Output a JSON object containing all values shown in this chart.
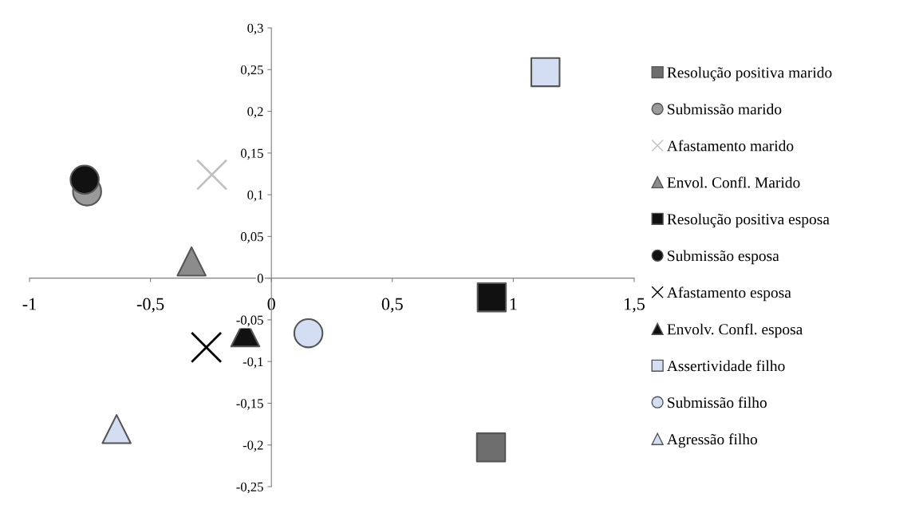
{
  "chart_data": {
    "type": "scatter",
    "series": [
      {
        "name": "Resolução positiva marido",
        "color": "#6e6e6e",
        "marker": "square",
        "x": [
          0.908
        ],
        "values": [
          -0.203
        ]
      },
      {
        "name": "Submissão marido",
        "color": "#9a9a9a",
        "marker": "circle",
        "x": [
          -0.762
        ],
        "values": [
          0.104
        ]
      },
      {
        "name": "Afastamento marido",
        "color": "#c0c0c0",
        "marker": "cross",
        "x": [
          -0.246
        ],
        "values": [
          0.124
        ]
      },
      {
        "name": "Envol. Confl. Marido",
        "color": "#8c8c8c",
        "marker": "triangle",
        "x": [
          -0.33
        ],
        "values": [
          0.02
        ]
      },
      {
        "name": "Resolução positiva esposa",
        "color": "#111111",
        "marker": "square",
        "x": [
          0.911
        ],
        "values": [
          -0.023
        ]
      },
      {
        "name": "Submissão esposa",
        "color": "#111111",
        "marker": "circle",
        "x": [
          -0.772
        ],
        "values": [
          0.118
        ]
      },
      {
        "name": "Afastamento esposa",
        "color": "#000000",
        "marker": "cross",
        "x": [
          -0.269
        ],
        "values": [
          -0.083
        ]
      },
      {
        "name": "Envolv. Confl. esposa",
        "color": "#111111",
        "marker": "triangle",
        "x": [
          -0.108
        ],
        "values": [
          -0.065
        ]
      },
      {
        "name": "Assertividade filho",
        "color": "#d3def2",
        "marker": "square",
        "x": [
          1.133
        ],
        "values": [
          0.247
        ]
      },
      {
        "name": "Submissão filho",
        "color": "#d3def2",
        "marker": "circle",
        "x": [
          0.153
        ],
        "values": [
          -0.066
        ]
      },
      {
        "name": "Agressão filho",
        "color": "#d3def2",
        "marker": "triangle",
        "x": [
          -0.64
        ],
        "values": [
          -0.181
        ]
      }
    ],
    "xlim": [
      -1,
      1.5
    ],
    "xticks": [
      -1,
      {
        "value": -0.5,
        "label": "-0,5"
      },
      0,
      {
        "value": 0.5,
        "label": "0,5"
      },
      1,
      {
        "value": 1.5,
        "label": "1,5"
      }
    ],
    "ylim": [
      -0.25,
      0.3
    ],
    "yticks": [
      {
        "value": -0.25,
        "label": "-0,25"
      },
      {
        "value": -0.2,
        "label": "-0,2"
      },
      {
        "value": -0.15,
        "label": "-0,15"
      },
      {
        "value": -0.1,
        "label": "-0,1"
      },
      {
        "value": -0.05,
        "label": "-0,05"
      },
      0,
      {
        "value": 0.05,
        "label": "0,05"
      },
      {
        "value": 0.1,
        "label": "0,1"
      },
      {
        "value": 0.15,
        "label": "0,15"
      },
      {
        "value": 0.2,
        "label": "0,2"
      },
      {
        "value": 0.25,
        "label": "0,25"
      },
      {
        "value": 0.3,
        "label": "0,3"
      }
    ],
    "grid": false,
    "legend": "right"
  }
}
